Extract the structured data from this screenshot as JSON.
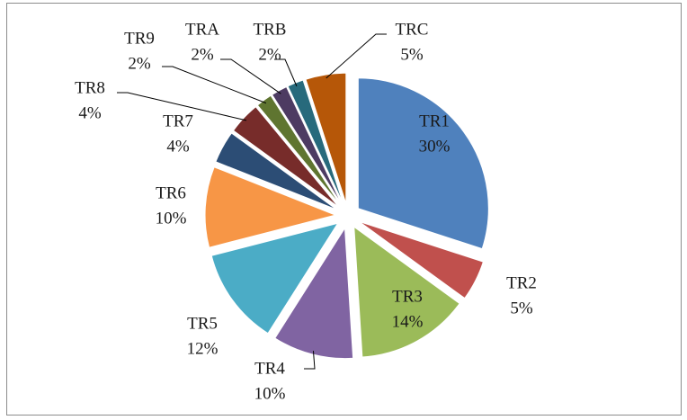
{
  "chart_data": {
    "type": "pie",
    "categories": [
      "TR1",
      "TR2",
      "TR3",
      "TR4",
      "TR5",
      "TR6",
      "TR7",
      "TR8",
      "TR9",
      "TRA",
      "TRB",
      "TRC"
    ],
    "values": [
      30,
      5,
      14,
      10,
      12,
      10,
      4,
      4,
      2,
      2,
      2,
      5
    ],
    "value_labels": [
      "30%",
      "5%",
      "14%",
      "10%",
      "12%",
      "10%",
      "4%",
      "4%",
      "2%",
      "2%",
      "2%",
      "5%"
    ],
    "colors": [
      "#4f81bd",
      "#c0504d",
      "#9bbb59",
      "#8064a2",
      "#4bacc6",
      "#f79646",
      "#2c4d75",
      "#772c2a",
      "#5f7530",
      "#4d3b62",
      "#276a7c",
      "#b65708"
    ]
  }
}
